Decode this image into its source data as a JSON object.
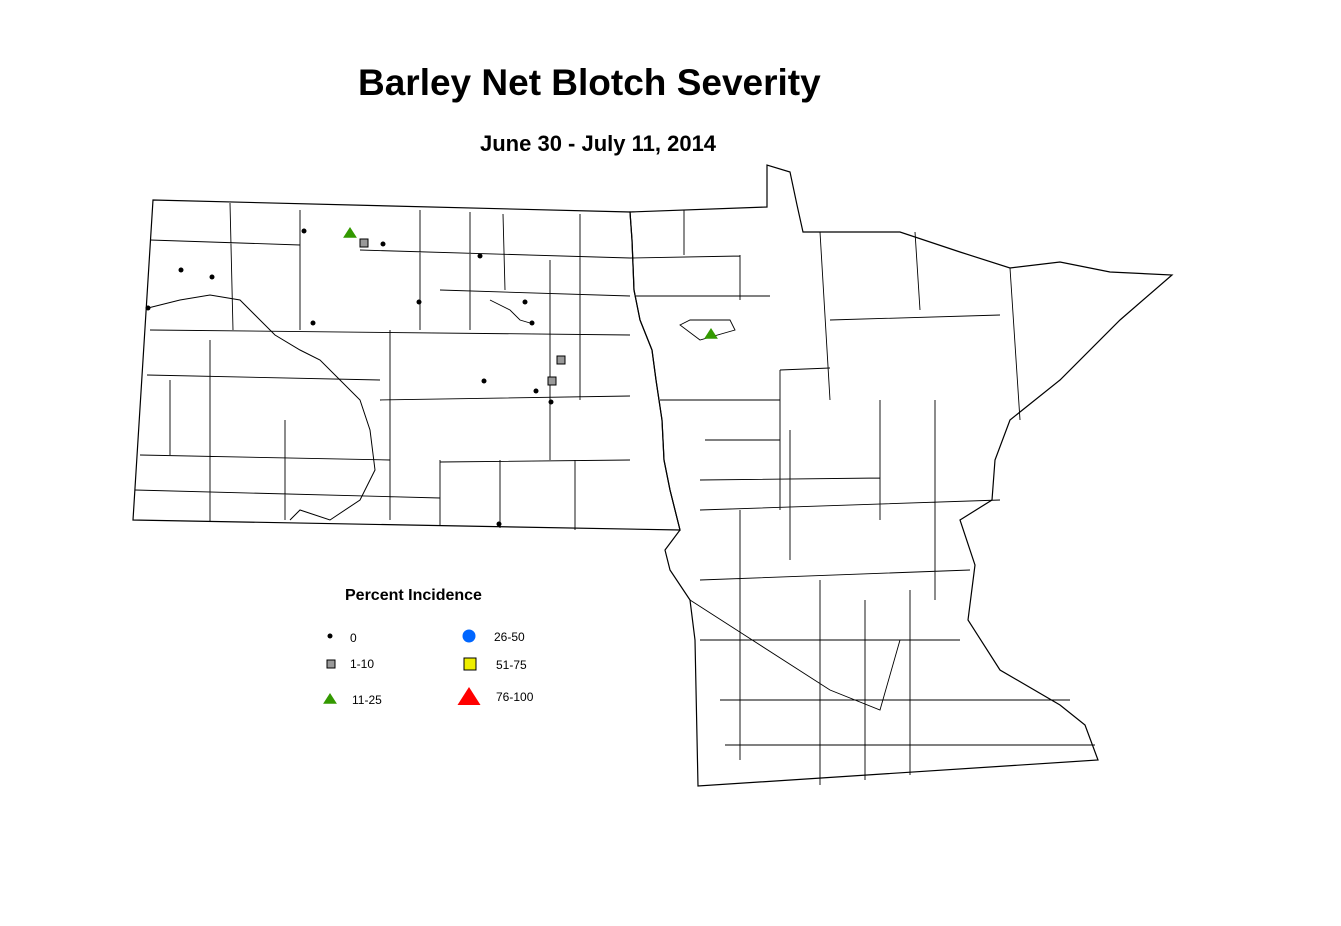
{
  "title": "Barley Net Blotch Severity",
  "subtitle": "June 30 - July 11, 2014",
  "legend": {
    "title": "Percent Incidence",
    "items": [
      {
        "label": "0",
        "shape": "dot",
        "color": "#000000"
      },
      {
        "label": "1-10",
        "shape": "square",
        "color": "#999999"
      },
      {
        "label": "11-25",
        "shape": "triangle",
        "color": "#339900"
      },
      {
        "label": "26-50",
        "shape": "circle",
        "color": "#0066ff"
      },
      {
        "label": "51-75",
        "shape": "square",
        "color": "#eeee00"
      },
      {
        "label": "76-100",
        "shape": "triangle",
        "color": "#ff0000"
      }
    ]
  },
  "sites": [
    {
      "category": "0"
    },
    {
      "category": "0"
    },
    {
      "category": "0"
    },
    {
      "category": "0"
    },
    {
      "category": "0"
    },
    {
      "category": "0"
    },
    {
      "category": "0"
    },
    {
      "category": "0"
    },
    {
      "category": "0"
    },
    {
      "category": "0"
    },
    {
      "category": "0"
    },
    {
      "category": "0"
    },
    {
      "category": "0"
    },
    {
      "category": "0"
    },
    {
      "category": "1-10"
    },
    {
      "category": "1-10"
    },
    {
      "category": "1-10"
    },
    {
      "category": "11-25"
    },
    {
      "category": "11-25"
    }
  ]
}
